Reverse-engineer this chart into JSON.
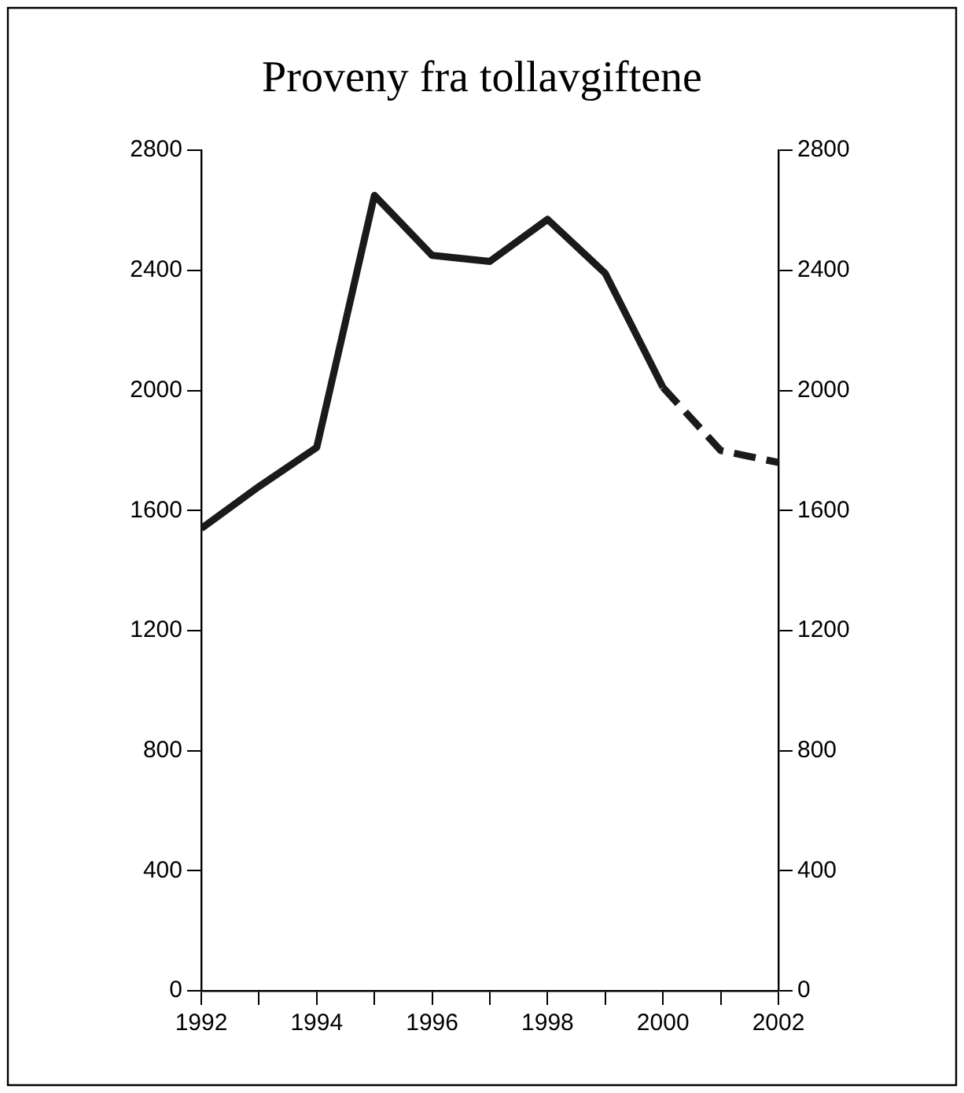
{
  "chart_data": {
    "type": "line",
    "title": "Proveny fra tollavgiftene",
    "marker": "none",
    "xlim": [
      1992,
      2002
    ],
    "xticks": [
      1992,
      {
        "value": 1993,
        "label": null
      },
      1994,
      {
        "value": 1995,
        "label": null
      },
      1996,
      {
        "value": 1997,
        "label": null
      },
      1998,
      {
        "value": 1999,
        "label": null
      },
      2000,
      {
        "value": 2001,
        "label": null
      },
      2002
    ],
    "ylim": [
      0,
      2800
    ],
    "yticks": [
      0,
      400,
      800,
      1200,
      1600,
      2000,
      2400,
      2800
    ],
    "y2lim": [
      0,
      2800
    ],
    "y2ticks": [
      0,
      400,
      800,
      1200,
      1600,
      2000,
      2400,
      2800
    ],
    "series": [
      {
        "color": "#1a1a1a",
        "line_style": "solid",
        "x": [
          1992,
          1993,
          1994,
          1995,
          1996,
          1997,
          1998,
          1999,
          2000
        ],
        "values": [
          1540,
          1680,
          1810,
          2650,
          2450,
          2430,
          2570,
          2390,
          2010
        ]
      },
      {
        "color": "#1a1a1a",
        "line_style": "dashed",
        "x": [
          2000,
          2001,
          2002
        ],
        "values": [
          2010,
          1800,
          1760
        ]
      }
    ]
  }
}
